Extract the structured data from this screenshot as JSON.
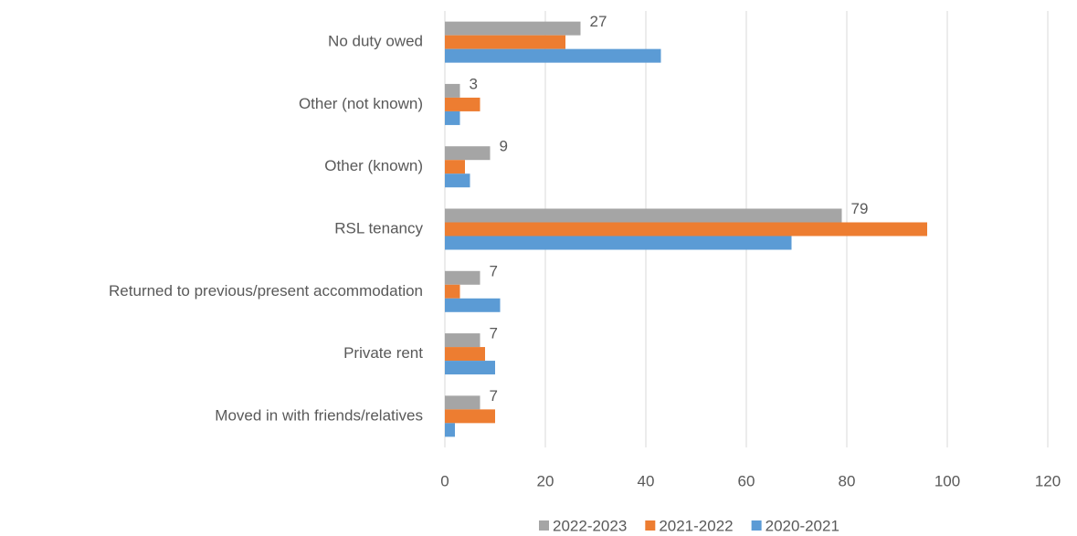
{
  "chart_data": {
    "type": "bar",
    "orientation": "horizontal",
    "categories": [
      "No duty owed",
      "Other (not known)",
      "Other (known)",
      "RSL tenancy",
      "Returned to previous/present accommodation",
      "Private rent",
      "Moved in with friends/relatives"
    ],
    "series": [
      {
        "name": "2022-2023",
        "color": "#a5a5a5",
        "values": [
          27,
          3,
          9,
          79,
          7,
          7,
          7
        ],
        "data_labels": true
      },
      {
        "name": "2021-2022",
        "color": "#ed7d31",
        "values": [
          24,
          7,
          4,
          96,
          3,
          8,
          10
        ]
      },
      {
        "name": "2020-2021",
        "color": "#5b9bd5",
        "values": [
          43,
          3,
          5,
          69,
          11,
          10,
          2
        ]
      }
    ],
    "xlim": [
      0,
      120
    ],
    "xticks": [
      0,
      20,
      40,
      60,
      80,
      100,
      120
    ],
    "grid": true,
    "legend": "bottom"
  }
}
